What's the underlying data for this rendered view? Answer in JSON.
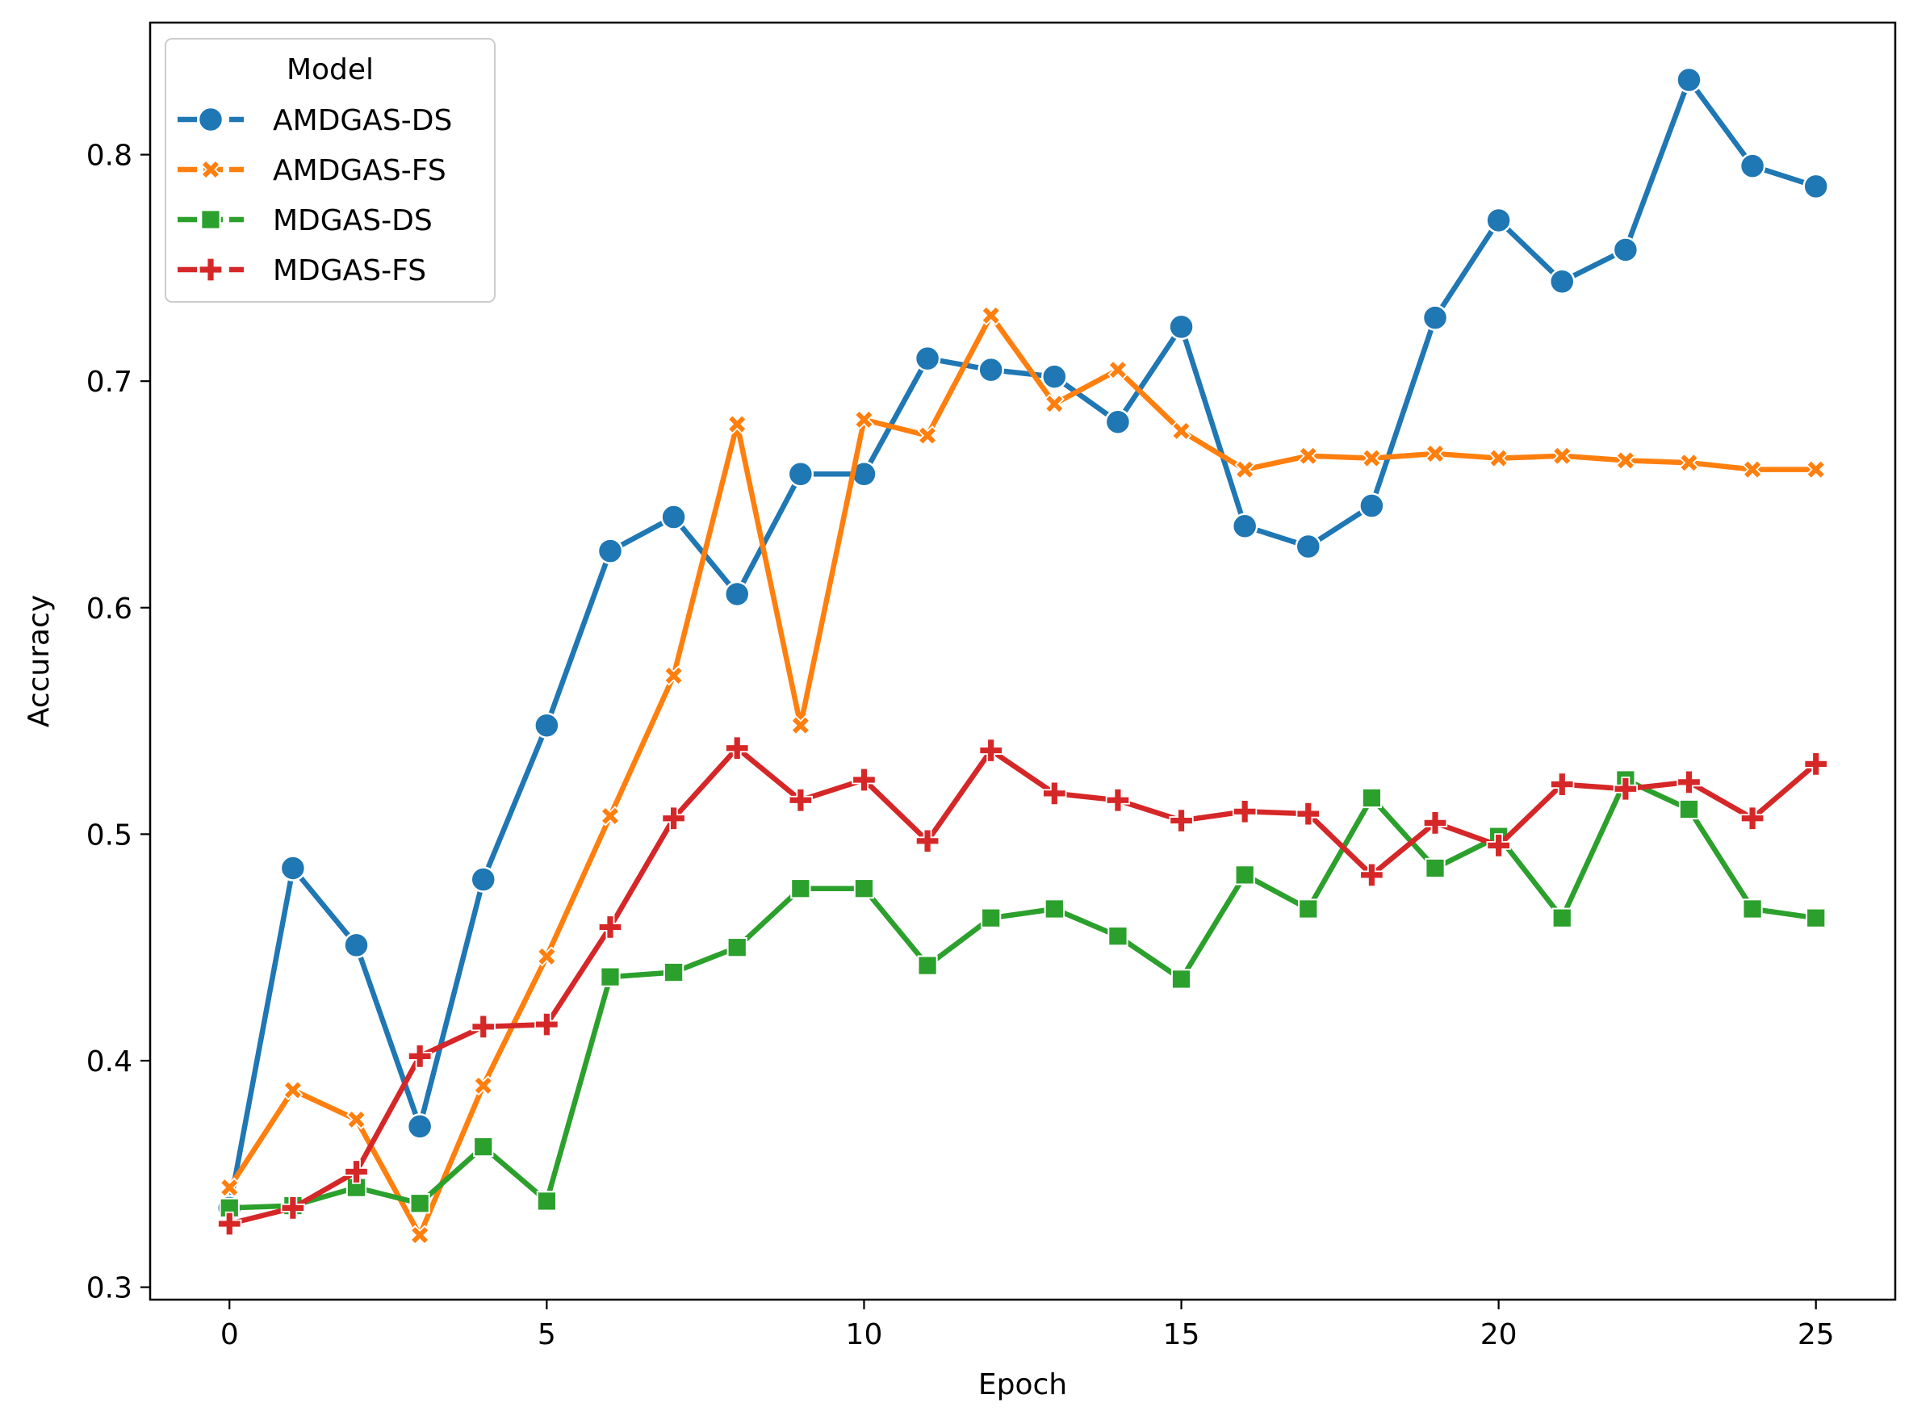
{
  "chart_data": {
    "type": "line",
    "title": "",
    "xlabel": "Epoch",
    "ylabel": "Accuracy",
    "xlim": [
      -1.25,
      26.25
    ],
    "ylim": [
      0.2945,
      0.8583
    ],
    "xticks": [
      0,
      5,
      10,
      15,
      20,
      25
    ],
    "xtick_labels": [
      "0",
      "5",
      "10",
      "15",
      "20",
      "25"
    ],
    "yticks": [
      0.3,
      0.4,
      0.5,
      0.6,
      0.7,
      0.8
    ],
    "ytick_labels": [
      "0.3",
      "0.4",
      "0.5",
      "0.6",
      "0.7",
      "0.8"
    ],
    "grid": false,
    "legend": {
      "title": "Model",
      "position": "top-left"
    },
    "x": [
      0,
      1,
      2,
      3,
      4,
      5,
      6,
      7,
      8,
      9,
      10,
      11,
      12,
      13,
      14,
      15,
      16,
      17,
      18,
      19,
      20,
      21,
      22,
      23,
      24,
      25
    ],
    "series": [
      {
        "name": "AMDGAS-DS",
        "color": "#1f77b4",
        "marker": "circle",
        "values": [
          0.335,
          0.485,
          0.451,
          0.371,
          0.48,
          0.548,
          0.625,
          0.64,
          0.606,
          0.659,
          0.659,
          0.71,
          0.705,
          0.702,
          0.682,
          0.724,
          0.636,
          0.627,
          0.645,
          0.728,
          0.771,
          0.744,
          0.758,
          0.833,
          0.795,
          0.786
        ]
      },
      {
        "name": "AMDGAS-FS",
        "color": "#ff7f0e",
        "marker": "x",
        "values": [
          0.344,
          0.387,
          0.374,
          0.323,
          0.389,
          0.446,
          0.508,
          0.57,
          0.681,
          0.548,
          0.683,
          0.676,
          0.729,
          0.69,
          0.705,
          0.678,
          0.661,
          0.667,
          0.666,
          0.668,
          0.666,
          0.667,
          0.665,
          0.664,
          0.661,
          0.661
        ]
      },
      {
        "name": "MDGAS-DS",
        "color": "#2ca02c",
        "marker": "square",
        "values": [
          0.335,
          0.336,
          0.344,
          0.337,
          0.362,
          0.338,
          0.437,
          0.439,
          0.45,
          0.476,
          0.476,
          0.442,
          0.463,
          0.467,
          0.455,
          0.436,
          0.482,
          0.467,
          0.516,
          0.485,
          0.499,
          0.463,
          0.524,
          0.511,
          0.467,
          0.463
        ]
      },
      {
        "name": "MDGAS-FS",
        "color": "#d62728",
        "marker": "plus",
        "values": [
          0.328,
          0.335,
          0.351,
          0.402,
          0.415,
          0.416,
          0.459,
          0.507,
          0.538,
          0.515,
          0.524,
          0.497,
          0.537,
          0.518,
          0.515,
          0.506,
          0.51,
          0.509,
          0.482,
          0.505,
          0.495,
          0.522,
          0.52,
          0.523,
          0.507,
          0.531
        ]
      }
    ]
  }
}
